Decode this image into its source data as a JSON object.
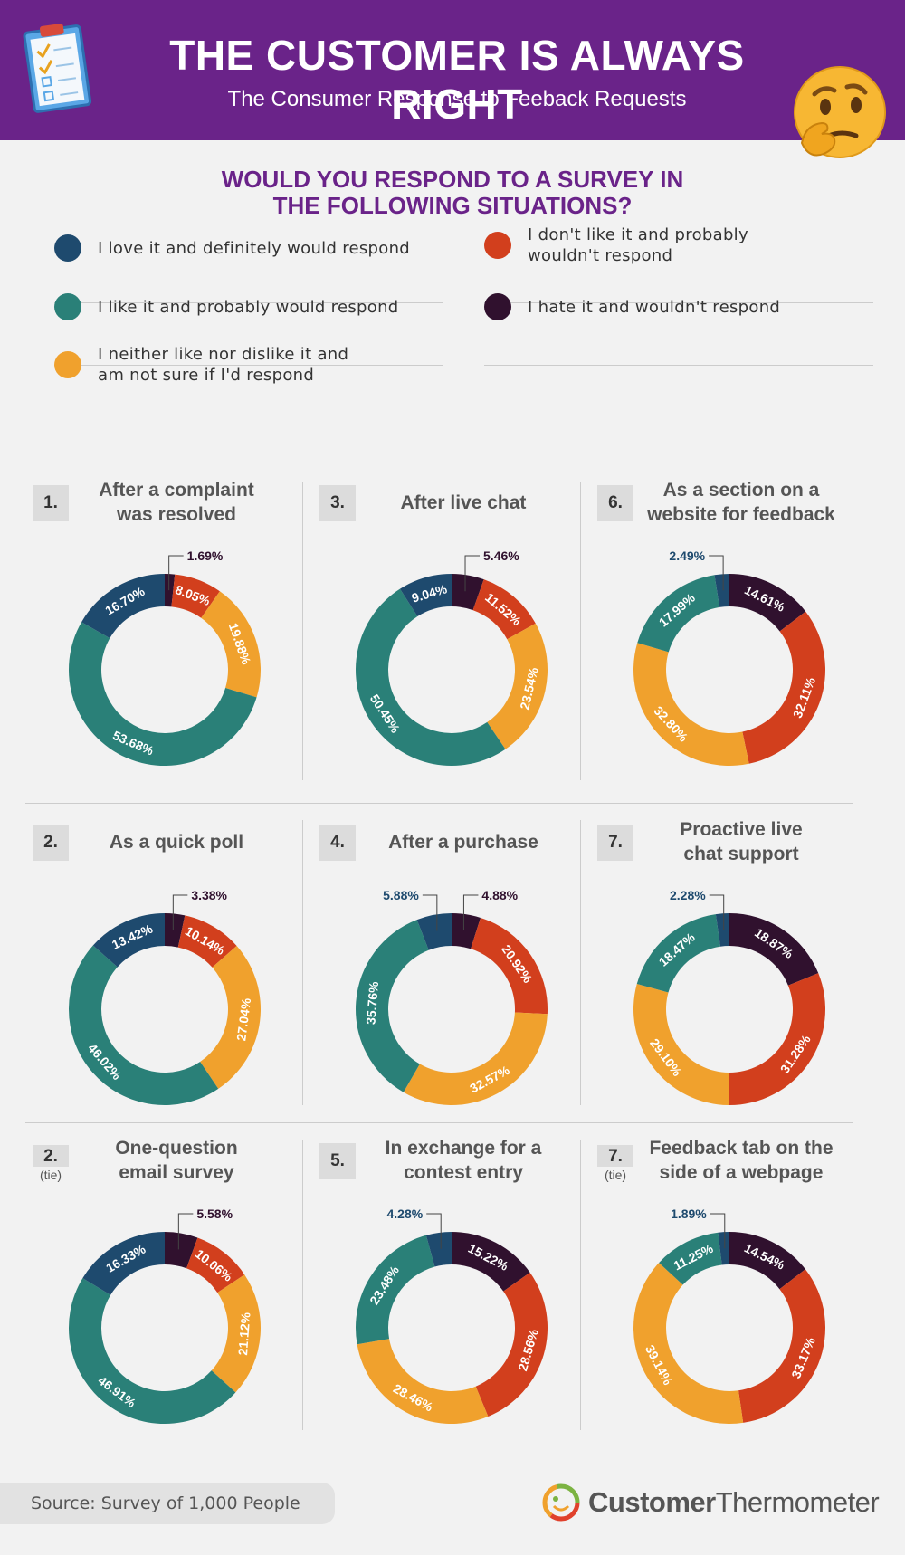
{
  "header": {
    "title": "THE CUSTOMER IS ALWAYS RIGHT",
    "subtitle": "The Consumer Response to Feeback Requests"
  },
  "question": [
    "WOULD YOU RESPOND TO A SURVEY IN",
    "THE FOLLOWING SITUATIONS?"
  ],
  "colors": {
    "love": "#1e4a6e",
    "like": "#2a8078",
    "neither": "#f0a12d",
    "dislike": "#d23f1d",
    "hate": "#30112e",
    "header_bg": "#6a2389",
    "question_text": "#6a2389"
  },
  "legend": [
    {
      "key": "love",
      "label": [
        "I love it and definitely would respond"
      ]
    },
    {
      "key": "like",
      "label": [
        "I like it and probably would respond"
      ]
    },
    {
      "key": "neither",
      "label": [
        "I neither like nor dislike it and",
        "am not sure if I'd respond"
      ]
    },
    {
      "key": "dislike",
      "label": [
        "I don't like it and probably",
        "wouldn't respond"
      ]
    },
    {
      "key": "hate",
      "label": [
        "I hate it and wouldn't respond"
      ]
    }
  ],
  "chart_data": [
    {
      "type": "pie",
      "rank": "1.",
      "tie": "",
      "title": [
        "After a complaint",
        "was resolved"
      ],
      "series": [
        {
          "name": "love",
          "value": 16.7
        },
        {
          "name": "like",
          "value": 53.68
        },
        {
          "name": "neither",
          "value": 19.88
        },
        {
          "name": "dislike",
          "value": 8.05
        },
        {
          "name": "hate",
          "value": 1.69
        }
      ],
      "labels": [
        "16.70%",
        "53.68%",
        "19.88%",
        "8.05%",
        "1.69%"
      ]
    },
    {
      "type": "pie",
      "rank": "3.",
      "tie": "",
      "title": [
        "After live chat"
      ],
      "series": [
        {
          "name": "love",
          "value": 9.04
        },
        {
          "name": "like",
          "value": 50.45
        },
        {
          "name": "neither",
          "value": 23.54
        },
        {
          "name": "dislike",
          "value": 11.52
        },
        {
          "name": "hate",
          "value": 5.46
        }
      ],
      "labels": [
        "9.04%",
        "50.45%",
        "23.54%",
        "11.52%",
        "5.46%"
      ]
    },
    {
      "type": "pie",
      "rank": "6.",
      "tie": "",
      "title": [
        "As a section on a",
        "website for feedback"
      ],
      "series": [
        {
          "name": "love",
          "value": 2.49
        },
        {
          "name": "like",
          "value": 17.99
        },
        {
          "name": "neither",
          "value": 32.8
        },
        {
          "name": "dislike",
          "value": 32.11
        },
        {
          "name": "hate",
          "value": 14.61
        }
      ],
      "labels": [
        "2.49%",
        "17.99%",
        "32.80%",
        "32.11%",
        "14.61%"
      ]
    },
    {
      "type": "pie",
      "rank": "2.",
      "tie": "",
      "title": [
        "As a quick poll"
      ],
      "series": [
        {
          "name": "love",
          "value": 13.42
        },
        {
          "name": "like",
          "value": 46.02
        },
        {
          "name": "neither",
          "value": 27.04
        },
        {
          "name": "dislike",
          "value": 10.14
        },
        {
          "name": "hate",
          "value": 3.38
        }
      ],
      "labels": [
        "13.42%",
        "46.02%",
        "27.04%",
        "10.14%",
        "3.38%"
      ]
    },
    {
      "type": "pie",
      "rank": "4.",
      "tie": "",
      "title": [
        "After a purchase"
      ],
      "series": [
        {
          "name": "love",
          "value": 5.88
        },
        {
          "name": "like",
          "value": 35.76
        },
        {
          "name": "neither",
          "value": 32.57
        },
        {
          "name": "dislike",
          "value": 20.92
        },
        {
          "name": "hate",
          "value": 4.88
        }
      ],
      "labels": [
        "5.88%",
        "35.76%",
        "32.57%",
        "20.92%",
        "4.88%"
      ]
    },
    {
      "type": "pie",
      "rank": "7.",
      "tie": "",
      "title": [
        "Proactive live",
        "chat support"
      ],
      "series": [
        {
          "name": "love",
          "value": 2.28
        },
        {
          "name": "like",
          "value": 18.47
        },
        {
          "name": "neither",
          "value": 29.1
        },
        {
          "name": "dislike",
          "value": 31.28
        },
        {
          "name": "hate",
          "value": 18.87
        }
      ],
      "labels": [
        "2.28%",
        "18.47%",
        "29.10%",
        "31.28%",
        "18.87%"
      ]
    },
    {
      "type": "pie",
      "rank": "2.",
      "tie": "(tie)",
      "title": [
        "One-question",
        "email survey"
      ],
      "series": [
        {
          "name": "love",
          "value": 16.33
        },
        {
          "name": "like",
          "value": 46.91
        },
        {
          "name": "neither",
          "value": 21.12
        },
        {
          "name": "dislike",
          "value": 10.06
        },
        {
          "name": "hate",
          "value": 5.58
        }
      ],
      "labels": [
        "16.33%",
        "46.91%",
        "21.12%",
        "10.06%",
        "5.58%"
      ]
    },
    {
      "type": "pie",
      "rank": "5.",
      "tie": "",
      "title": [
        "In exchange for a",
        "contest entry"
      ],
      "series": [
        {
          "name": "love",
          "value": 4.28
        },
        {
          "name": "like",
          "value": 23.48
        },
        {
          "name": "neither",
          "value": 28.46
        },
        {
          "name": "dislike",
          "value": 28.56
        },
        {
          "name": "hate",
          "value": 15.22
        }
      ],
      "labels": [
        "4.28%",
        "23.48%",
        "28.46%",
        "28.56%",
        "15.22%"
      ]
    },
    {
      "type": "pie",
      "rank": "7.",
      "tie": "(tie)",
      "title": [
        "Feedback tab on the",
        "side of a webpage"
      ],
      "series": [
        {
          "name": "love",
          "value": 1.89
        },
        {
          "name": "like",
          "value": 11.25
        },
        {
          "name": "neither",
          "value": 39.14
        },
        {
          "name": "dislike",
          "value": 33.17
        },
        {
          "name": "hate",
          "value": 14.54
        }
      ],
      "labels": [
        "1.89%",
        "11.25%",
        "39.14%",
        "33.17%",
        "14.54%"
      ]
    }
  ],
  "footer": {
    "source": "Source: Survey of 1,000 People",
    "brand_part1": "Customer",
    "brand_part2": "Thermometer"
  }
}
